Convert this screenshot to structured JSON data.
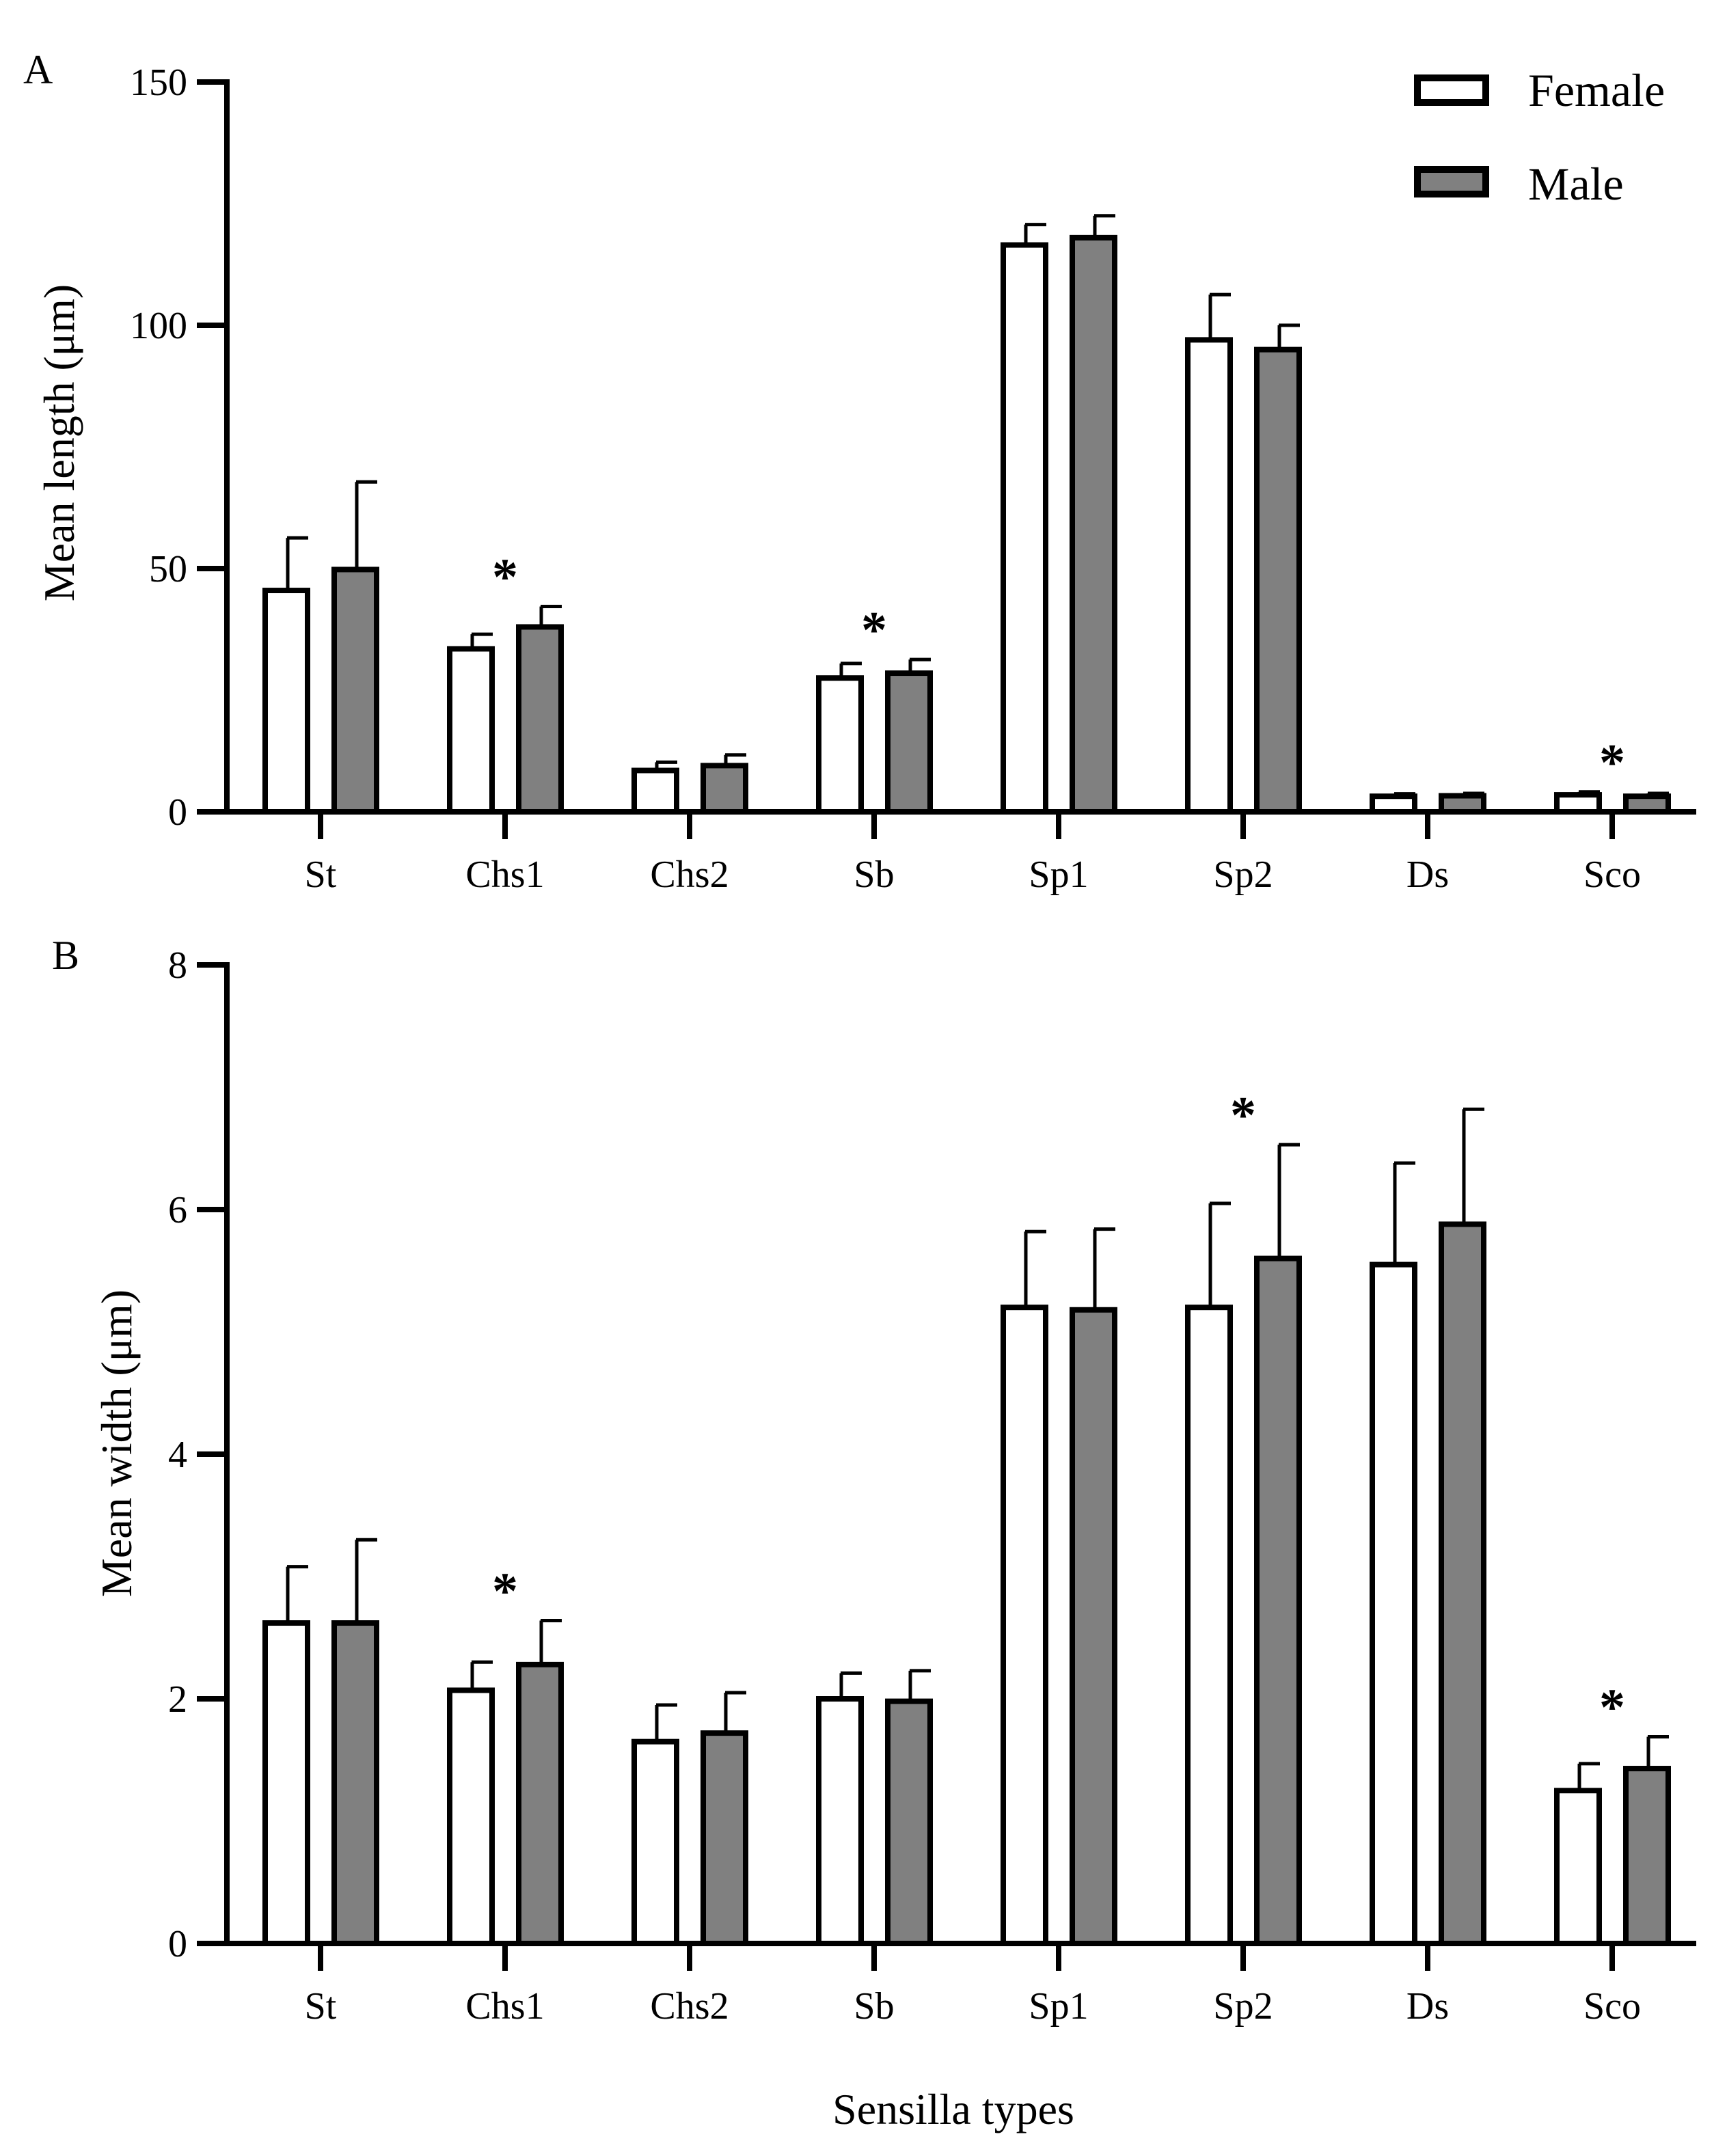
{
  "colors": {
    "female": "#ffffff",
    "male": "#808080",
    "stroke": "#000000"
  },
  "x_title": "Sensilla types",
  "legend": {
    "labels": [
      "Female",
      "Male"
    ]
  },
  "chart_data": [
    {
      "panel": "A",
      "type": "bar",
      "ylabel": "Mean length (μm)",
      "ylim": [
        0,
        150
      ],
      "yticks": [
        "0",
        "50",
        "100",
        "150"
      ],
      "categories": [
        "St",
        "Chs1",
        "Chs2",
        "Sb",
        "Sp1",
        "Sp2",
        "Ds",
        "Sco"
      ],
      "series": [
        {
          "name": "Female",
          "values": [
            45.5,
            33.5,
            8.5,
            27.5,
            116.5,
            97,
            3.2,
            3.5
          ],
          "errors": [
            10.8,
            3.0,
            1.7,
            3.0,
            4.2,
            9.3,
            0.5,
            0.6
          ]
        },
        {
          "name": "Male",
          "values": [
            49.8,
            38,
            9.5,
            28.5,
            118,
            95,
            3.3,
            3.2
          ],
          "errors": [
            18,
            4.2,
            2.2,
            2.8,
            4.5,
            5.0,
            0.5,
            0.6
          ]
        }
      ],
      "significance": [
        "",
        "*",
        "",
        "*",
        "",
        "",
        "",
        "*"
      ]
    },
    {
      "panel": "B",
      "type": "bar",
      "ylabel": "Mean width (μm)",
      "ylim": [
        0,
        8
      ],
      "yticks": [
        "0",
        "2",
        "4",
        "6",
        "8"
      ],
      "categories": [
        "St",
        "Chs1",
        "Chs2",
        "Sb",
        "Sp1",
        "Sp2",
        "Ds",
        "Sco"
      ],
      "series": [
        {
          "name": "Female",
          "values": [
            2.62,
            2.07,
            1.65,
            2.0,
            5.2,
            5.2,
            5.55,
            1.25
          ],
          "errors": [
            0.46,
            0.23,
            0.3,
            0.21,
            0.62,
            0.85,
            0.83,
            0.22
          ]
        },
        {
          "name": "Male",
          "values": [
            2.62,
            2.28,
            1.72,
            1.98,
            5.18,
            5.6,
            5.88,
            1.43
          ],
          "errors": [
            0.68,
            0.36,
            0.33,
            0.25,
            0.66,
            0.93,
            0.94,
            0.26
          ]
        }
      ],
      "significance": [
        "",
        "*",
        "",
        "",
        "",
        "*",
        "",
        "*"
      ]
    }
  ]
}
